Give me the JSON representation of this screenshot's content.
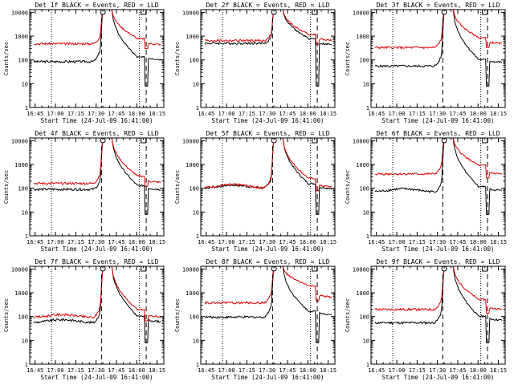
{
  "figure": {
    "ylabel": "Counts/sec",
    "xlabel": "Start Time (24-Jul-09 16:41:00)",
    "colors": {
      "events": "#000000",
      "lld": "#dd0000",
      "axes": "#000000",
      "background": "#ffffff"
    }
  },
  "chart_data": [
    {
      "type": "line",
      "title": "Det 1f BLACK = Events, RED = LLD",
      "xlabel": "Start Time (24-Jul-09 16:41:00)",
      "ylabel": "Counts/sec",
      "xscale": "time",
      "yscale": "log",
      "xlim": [
        "16:41",
        "18:20"
      ],
      "ylim": [
        1,
        13000
      ],
      "yticks": [
        1,
        10,
        100,
        1000,
        10000
      ],
      "ytick_labels": [
        "1",
        "10",
        "100",
        "1000",
        "10000"
      ],
      "xticks": [
        "16:45",
        "17:00",
        "17:15",
        "17:30",
        "17:45",
        "18:00",
        "18:15"
      ],
      "series": [
        {
          "name": "Events",
          "color": "#000000",
          "level": 85,
          "rise_to": 250,
          "rise_from": 100,
          "post": 120,
          "pre_bump": false
        },
        {
          "name": "LLD",
          "color": "#dd0000",
          "level": 480,
          "rise_to": 1000,
          "rise_from": 600,
          "post": 500,
          "pre_bump": false
        }
      ],
      "markers": {
        "dotted": [
          "16:57",
          "18:02"
        ],
        "dashed": [
          "17:34",
          "18:07"
        ],
        "circle": "17:35",
        "square": "18:05"
      }
    },
    {
      "type": "line",
      "title": "Det 2f BLACK = Events, RED = LLD",
      "xlabel": "Start Time (24-Jul-09 16:41:00)",
      "ylabel": "Counts/sec",
      "xscale": "time",
      "yscale": "log",
      "xlim": [
        "16:41",
        "18:20"
      ],
      "ylim": [
        1,
        13000
      ],
      "yticks": [
        1,
        10,
        100,
        1000,
        10000
      ],
      "ytick_labels": [
        "1",
        "10",
        "100",
        "1000",
        "10000"
      ],
      "xticks": [
        "16:45",
        "17:00",
        "17:15",
        "17:30",
        "17:45",
        "18:00",
        "18:15"
      ],
      "series": [
        {
          "name": "Events",
          "color": "#000000",
          "level": 500,
          "rise_to": 900,
          "rise_from": 600,
          "post": 500,
          "pre_bump": false
        },
        {
          "name": "LLD",
          "color": "#dd0000",
          "level": 650,
          "rise_to": 1200,
          "rise_from": 900,
          "post": 750,
          "pre_bump": false
        }
      ],
      "markers": {
        "dotted": [
          "16:57",
          "18:02"
        ],
        "dashed": [
          "17:34",
          "18:07"
        ],
        "circle": "17:35",
        "square": "18:05"
      }
    },
    {
      "type": "line",
      "title": "Det 3f BLACK = Events, RED = LLD",
      "xlabel": "Start Time (24-Jul-09 16:41:00)",
      "ylabel": "Counts/sec",
      "xscale": "time",
      "yscale": "log",
      "xlim": [
        "16:41",
        "18:20"
      ],
      "ylim": [
        1,
        13000
      ],
      "yticks": [
        1,
        10,
        100,
        1000,
        10000
      ],
      "ytick_labels": [
        "1",
        "10",
        "100",
        "1000",
        "10000"
      ],
      "xticks": [
        "16:45",
        "17:00",
        "17:15",
        "17:30",
        "17:45",
        "18:00",
        "18:15"
      ],
      "series": [
        {
          "name": "Events",
          "color": "#000000",
          "level": 55,
          "rise_to": 150,
          "rise_from": 80,
          "post": 90,
          "pre_bump": false
        },
        {
          "name": "LLD",
          "color": "#dd0000",
          "level": 330,
          "rise_to": 800,
          "rise_from": 650,
          "post": 550,
          "pre_bump": false
        }
      ],
      "markers": {
        "dotted": [
          "16:57",
          "18:02"
        ],
        "dashed": [
          "17:34",
          "18:07"
        ],
        "circle": "17:35",
        "square": "18:05"
      }
    },
    {
      "type": "line",
      "title": "Det 4f BLACK = Events, RED = LLD",
      "xlabel": "Start Time (24-Jul-09 16:41:00)",
      "ylabel": "Counts/sec",
      "xscale": "time",
      "yscale": "log",
      "xlim": [
        "16:41",
        "18:20"
      ],
      "ylim": [
        1,
        13000
      ],
      "yticks": [
        1,
        10,
        100,
        1000,
        10000
      ],
      "ytick_labels": [
        "1",
        "10",
        "100",
        "1000",
        "10000"
      ],
      "xticks": [
        "16:45",
        "17:00",
        "17:15",
        "17:30",
        "17:45",
        "18:00",
        "18:15"
      ],
      "series": [
        {
          "name": "Events",
          "color": "#000000",
          "level": 90,
          "rise_to": 200,
          "rise_from": 100,
          "post": 100,
          "pre_bump": false
        },
        {
          "name": "LLD",
          "color": "#dd0000",
          "level": 160,
          "rise_to": 400,
          "rise_from": 250,
          "post": 200,
          "pre_bump": false
        }
      ],
      "markers": {
        "dotted": [
          "16:57",
          "18:02"
        ],
        "dashed": [
          "17:34",
          "18:07"
        ],
        "circle": "17:35",
        "square": "18:05"
      }
    },
    {
      "type": "line",
      "title": "Det 5f BLACK = Events, RED = LLD",
      "xlabel": "Start Time (24-Jul-09 16:41:00)",
      "ylabel": "Counts/sec",
      "xscale": "time",
      "yscale": "log",
      "xlim": [
        "16:41",
        "18:20"
      ],
      "ylim": [
        1,
        13000
      ],
      "yticks": [
        1,
        10,
        100,
        1000,
        10000
      ],
      "ytick_labels": [
        "1",
        "10",
        "100",
        "1000",
        "10000"
      ],
      "xticks": [
        "16:45",
        "17:00",
        "17:15",
        "17:30",
        "17:45",
        "18:00",
        "18:15"
      ],
      "series": [
        {
          "name": "Events",
          "color": "#000000",
          "level": 100,
          "rise_to": 250,
          "rise_from": 120,
          "post": 110,
          "pre_bump": true
        },
        {
          "name": "LLD",
          "color": "#dd0000",
          "level": 105,
          "rise_to": 300,
          "rise_from": 200,
          "post": 130,
          "pre_bump": true
        }
      ],
      "markers": {
        "dotted": [
          "16:57",
          "18:02"
        ],
        "dashed": [
          "17:34",
          "18:07"
        ],
        "circle": "17:35",
        "square": "18:05"
      }
    },
    {
      "type": "line",
      "title": "Det 6f BLACK = Events, RED = LLD",
      "xlabel": "Start Time (24-Jul-09 16:41:00)",
      "ylabel": "Counts/sec",
      "xscale": "time",
      "yscale": "log",
      "xlim": [
        "16:41",
        "18:20"
      ],
      "ylim": [
        1,
        13000
      ],
      "yticks": [
        1,
        10,
        100,
        1000,
        10000
      ],
      "ytick_labels": [
        "1",
        "10",
        "100",
        "1000",
        "10000"
      ],
      "xticks": [
        "16:45",
        "17:00",
        "17:15",
        "17:30",
        "17:45",
        "18:00",
        "18:15"
      ],
      "series": [
        {
          "name": "Events",
          "color": "#000000",
          "level": 70,
          "rise_to": 160,
          "rise_from": 90,
          "post": 90,
          "pre_bump": true
        },
        {
          "name": "LLD",
          "color": "#dd0000",
          "level": 400,
          "rise_to": 900,
          "rise_from": 700,
          "post": 450,
          "pre_bump": false
        }
      ],
      "markers": {
        "dotted": [
          "16:57",
          "18:02"
        ],
        "dashed": [
          "17:34",
          "18:07"
        ],
        "circle": "17:35",
        "square": "18:05"
      }
    },
    {
      "type": "line",
      "title": "Det 7f BLACK = Events, RED = LLD",
      "xlabel": "Start Time (24-Jul-09 16:41:00)",
      "ylabel": "Counts/sec",
      "xscale": "time",
      "yscale": "log",
      "xlim": [
        "16:41",
        "18:20"
      ],
      "ylim": [
        1,
        13000
      ],
      "yticks": [
        1,
        10,
        100,
        1000,
        10000
      ],
      "ytick_labels": [
        "1",
        "10",
        "100",
        "1000",
        "10000"
      ],
      "xticks": [
        "16:45",
        "17:00",
        "17:15",
        "17:30",
        "17:45",
        "18:00",
        "18:15"
      ],
      "series": [
        {
          "name": "Events",
          "color": "#000000",
          "level": 55,
          "rise_to": 150,
          "rise_from": 80,
          "post": 70,
          "pre_bump": true
        },
        {
          "name": "LLD",
          "color": "#dd0000",
          "level": 90,
          "rise_to": 250,
          "rise_from": 150,
          "post": 110,
          "pre_bump": true
        }
      ],
      "markers": {
        "dotted": [
          "16:57",
          "18:02"
        ],
        "dashed": [
          "17:34",
          "18:07"
        ],
        "circle": "17:35",
        "square": "18:05"
      }
    },
    {
      "type": "line",
      "title": "Det 8f BLACK = Events, RED = LLD",
      "xlabel": "Start Time (24-Jul-09 16:41:00)",
      "ylabel": "Counts/sec",
      "xscale": "time",
      "yscale": "log",
      "xlim": [
        "16:41",
        "18:20"
      ],
      "ylim": [
        1,
        13000
      ],
      "yticks": [
        1,
        10,
        100,
        1000,
        10000
      ],
      "ytick_labels": [
        "1",
        "10",
        "100",
        "1000",
        "10000"
      ],
      "xticks": [
        "16:45",
        "17:00",
        "17:15",
        "17:30",
        "17:45",
        "18:00",
        "18:15"
      ],
      "series": [
        {
          "name": "Events",
          "color": "#000000",
          "level": 95,
          "rise_to": 300,
          "rise_from": 130,
          "post": 140,
          "pre_bump": false
        },
        {
          "name": "LLD",
          "color": "#dd0000",
          "level": 380,
          "rise_to": 900,
          "rise_from": 1500,
          "post": 750,
          "pre_bump": false
        }
      ],
      "markers": {
        "dotted": [
          "16:57",
          "18:02"
        ],
        "dashed": [
          "17:34",
          "18:07"
        ],
        "circle": "17:35",
        "square": "18:05"
      }
    },
    {
      "type": "line",
      "title": "Det 9f BLACK = Events, RED = LLD",
      "xlabel": "Start Time (24-Jul-09 16:41:00)",
      "ylabel": "Counts/sec",
      "xscale": "time",
      "yscale": "log",
      "xlim": [
        "16:41",
        "18:20"
      ],
      "ylim": [
        1,
        13000
      ],
      "yticks": [
        1,
        10,
        100,
        1000,
        10000
      ],
      "ytick_labels": [
        "1",
        "10",
        "100",
        "1000",
        "10000"
      ],
      "xticks": [
        "16:45",
        "17:00",
        "17:15",
        "17:30",
        "17:45",
        "18:00",
        "18:15"
      ],
      "series": [
        {
          "name": "Events",
          "color": "#000000",
          "level": 55,
          "rise_to": 160,
          "rise_from": 80,
          "post": 80,
          "pre_bump": false
        },
        {
          "name": "LLD",
          "color": "#dd0000",
          "level": 200,
          "rise_to": 500,
          "rise_from": 400,
          "post": 230,
          "pre_bump": false
        }
      ],
      "markers": {
        "dotted": [
          "16:57",
          "18:02"
        ],
        "dashed": [
          "17:34",
          "18:07"
        ],
        "circle": "17:35",
        "square": "18:05"
      }
    }
  ]
}
